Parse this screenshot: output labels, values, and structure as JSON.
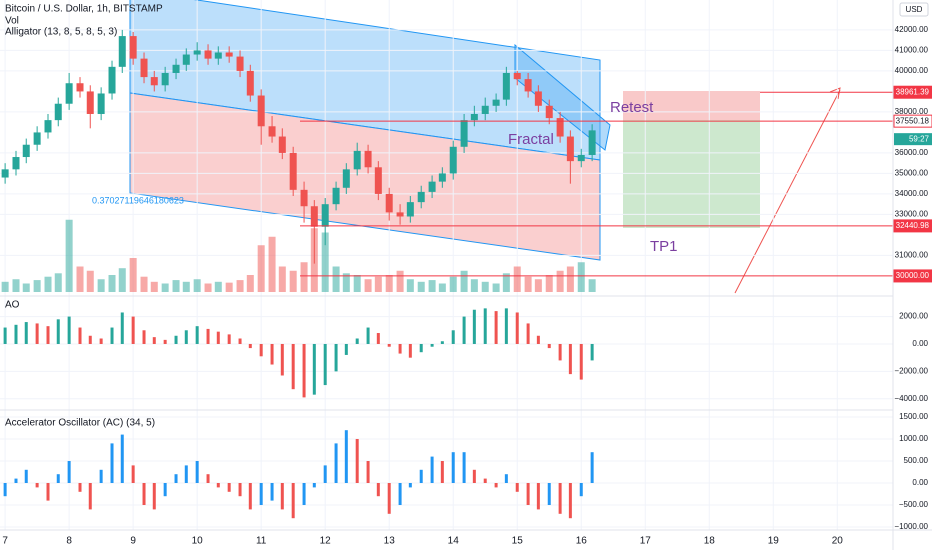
{
  "chart_data": {
    "type": "candlestick",
    "title": "Bitcoin / U.S. Dollar, 1h, BITSTAMP",
    "volume_title": "Vol",
    "alligator_title": "Alligator (13, 8, 5, 8, 5, 3)",
    "ao_title": "AO",
    "ac_title": "Accelerator Oscillator (AC) (34, 5)",
    "currency": "USD",
    "annotations": {
      "fractal": "Fractal",
      "retest": "Retest",
      "tp1": "TP1",
      "fib": "0.37027119646180623"
    },
    "countdown": "59:27",
    "up_color": "#26a69a",
    "down_color": "#ef5350",
    "x": [
      7.0,
      7.17,
      7.33,
      7.5,
      7.67,
      7.83,
      8.0,
      8.17,
      8.33,
      8.5,
      8.67,
      8.83,
      9.0,
      9.17,
      9.33,
      9.5,
      9.67,
      9.83,
      10.0,
      10.17,
      10.33,
      10.5,
      10.67,
      10.83,
      11.0,
      11.17,
      11.33,
      11.5,
      11.67,
      11.83,
      12.0,
      12.17,
      12.33,
      12.5,
      12.67,
      12.83,
      13.0,
      13.17,
      13.33,
      13.5,
      13.67,
      13.83,
      14.0,
      14.17,
      14.33,
      14.5,
      14.67,
      14.83,
      15.0,
      15.17,
      15.33,
      15.5,
      15.67,
      15.83,
      16.0,
      16.17
    ],
    "candles": [
      [
        34800,
        35500,
        34500,
        35200
      ],
      [
        35200,
        36100,
        34900,
        35800
      ],
      [
        35800,
        36700,
        35500,
        36400
      ],
      [
        36400,
        37300,
        36100,
        37000
      ],
      [
        37000,
        37900,
        36700,
        37600
      ],
      [
        37600,
        38700,
        37300,
        38400
      ],
      [
        38400,
        39900,
        38100,
        39400
      ],
      [
        39400,
        39700,
        38700,
        39000
      ],
      [
        39000,
        39300,
        37200,
        37900
      ],
      [
        37900,
        39200,
        37600,
        38900
      ],
      [
        38900,
        40500,
        38600,
        40200
      ],
      [
        40200,
        42000,
        39900,
        41700
      ],
      [
        41700,
        41900,
        40300,
        40600
      ],
      [
        40600,
        40900,
        39400,
        39700
      ],
      [
        39700,
        40000,
        39000,
        39300
      ],
      [
        39300,
        40200,
        39000,
        39900
      ],
      [
        39900,
        40600,
        39600,
        40300
      ],
      [
        40300,
        41100,
        40000,
        40800
      ],
      [
        40800,
        41400,
        40500,
        41000
      ],
      [
        41000,
        41300,
        40300,
        40600
      ],
      [
        40600,
        41200,
        40300,
        40900
      ],
      [
        40900,
        41200,
        40400,
        40700
      ],
      [
        40700,
        41000,
        39700,
        40000
      ],
      [
        40000,
        40300,
        38500,
        38800
      ],
      [
        38800,
        39100,
        36400,
        37300
      ],
      [
        37300,
        37800,
        36500,
        36800
      ],
      [
        36800,
        37200,
        35700,
        36000
      ],
      [
        36000,
        36300,
        33900,
        34200
      ],
      [
        34200,
        34600,
        32600,
        33400
      ],
      [
        33400,
        33700,
        30600,
        32400
      ],
      [
        32400,
        33800,
        31500,
        33500
      ],
      [
        33500,
        34600,
        33200,
        34300
      ],
      [
        34300,
        35500,
        34000,
        35200
      ],
      [
        35200,
        36500,
        34900,
        36100
      ],
      [
        36100,
        36400,
        35000,
        35300
      ],
      [
        35300,
        35600,
        33700,
        34000
      ],
      [
        34000,
        34300,
        32700,
        33100
      ],
      [
        33100,
        33500,
        32500,
        32900
      ],
      [
        32900,
        33900,
        32600,
        33600
      ],
      [
        33600,
        34400,
        33300,
        34100
      ],
      [
        34100,
        34900,
        33800,
        34600
      ],
      [
        34600,
        35300,
        34300,
        35000
      ],
      [
        35000,
        36600,
        34700,
        36300
      ],
      [
        36300,
        37900,
        36000,
        37600
      ],
      [
        37600,
        38300,
        37300,
        37900
      ],
      [
        37900,
        38700,
        37600,
        38300
      ],
      [
        38300,
        38900,
        38000,
        38600
      ],
      [
        38600,
        40200,
        38300,
        39900
      ],
      [
        39900,
        40000,
        39300,
        39600
      ],
      [
        39600,
        39900,
        38700,
        39000
      ],
      [
        39000,
        39300,
        38000,
        38300
      ],
      [
        38300,
        38600,
        37400,
        37700
      ],
      [
        37700,
        38000,
        36500,
        36800
      ],
      [
        36800,
        37100,
        34500,
        35600
      ],
      [
        35600,
        36200,
        35300,
        35900
      ],
      [
        35900,
        37400,
        35600,
        37100
      ]
    ],
    "volume": [
      12,
      15,
      10,
      14,
      18,
      22,
      85,
      30,
      25,
      15,
      20,
      28,
      40,
      18,
      12,
      10,
      14,
      12,
      15,
      10,
      12,
      11,
      14,
      20,
      55,
      65,
      30,
      25,
      35,
      75,
      70,
      30,
      22,
      20,
      15,
      18,
      20,
      25,
      15,
      12,
      14,
      10,
      18,
      25,
      15,
      12,
      10,
      22,
      30,
      18,
      15,
      20,
      25,
      30,
      35,
      15
    ],
    "volume_lim": [
      0,
      100
    ],
    "ao": [
      1200,
      1400,
      1600,
      1500,
      1300,
      1800,
      2000,
      1200,
      600,
      400,
      1200,
      2300,
      2000,
      1000,
      500,
      300,
      600,
      1000,
      1300,
      1100,
      900,
      700,
      400,
      -300,
      -900,
      -1500,
      -2300,
      -3300,
      -3900,
      -3700,
      -3000,
      -2000,
      -800,
      400,
      1200,
      800,
      -200,
      -700,
      -1000,
      -600,
      -200,
      200,
      1000,
      2000,
      2500,
      2600,
      2400,
      2600,
      2300,
      1500,
      600,
      -300,
      -1200,
      -2200,
      -2600,
      -1200
    ],
    "ac": [
      -300,
      100,
      300,
      -100,
      -400,
      200,
      500,
      -200,
      -600,
      300,
      900,
      1100,
      400,
      -500,
      -600,
      -300,
      200,
      400,
      500,
      200,
      -100,
      -200,
      -300,
      -600,
      -500,
      -400,
      -600,
      -800,
      -500,
      -100,
      400,
      900,
      1200,
      1000,
      500,
      -300,
      -700,
      -500,
      -100,
      300,
      600,
      500,
      700,
      700,
      300,
      100,
      -100,
      200,
      -200,
      -500,
      -600,
      -500,
      -700,
      -800,
      -300,
      700
    ],
    "xlim": [
      6.92,
      20.87
    ],
    "xticks": [
      7,
      8,
      9,
      10,
      11,
      12,
      13,
      14,
      15,
      16,
      17,
      18,
      19,
      20
    ],
    "ylim": [
      29070,
      43460
    ],
    "yticks": [
      {
        "value": 42000,
        "label": "42000.00"
      },
      {
        "value": 41000,
        "label": "41000.00"
      },
      {
        "value": 40000,
        "label": "40000.00"
      },
      {
        "value": 38000,
        "label": "38000.00"
      },
      {
        "value": 36000,
        "label": "36000.00"
      },
      {
        "value": 35000,
        "label": "35000.00"
      },
      {
        "value": 34000,
        "label": "34000.00"
      },
      {
        "value": 33000,
        "label": "33000.00"
      },
      {
        "value": 31000,
        "label": "31000.00"
      }
    ],
    "levels": [
      {
        "value": 38961.39,
        "label": "38961.39"
      },
      {
        "value": 37550.18,
        "label": "37550.18"
      },
      {
        "value": 32440.98,
        "label": "32440.98"
      },
      {
        "value": 30000,
        "label": "30000.00"
      }
    ],
    "ao_lim": [
      -4820,
      3430
    ],
    "ao_ticks": [
      {
        "value": 2000,
        "label": "2000.00"
      },
      {
        "value": 0,
        "label": "0.00"
      },
      {
        "value": -2000,
        "label": "−2000.00"
      },
      {
        "value": -4000,
        "label": "−4000.00"
      }
    ],
    "ac_lim": [
      -1068,
      1636
    ],
    "ac_ticks": [
      {
        "value": 1500,
        "label": "1500.00"
      },
      {
        "value": 1000,
        "label": "1000.00"
      },
      {
        "value": 500,
        "label": "500.00"
      },
      {
        "value": 0,
        "label": "0.00"
      },
      {
        "value": -500,
        "label": "−500.00"
      },
      {
        "value": -1000,
        "label": "−1000.00"
      }
    ]
  }
}
